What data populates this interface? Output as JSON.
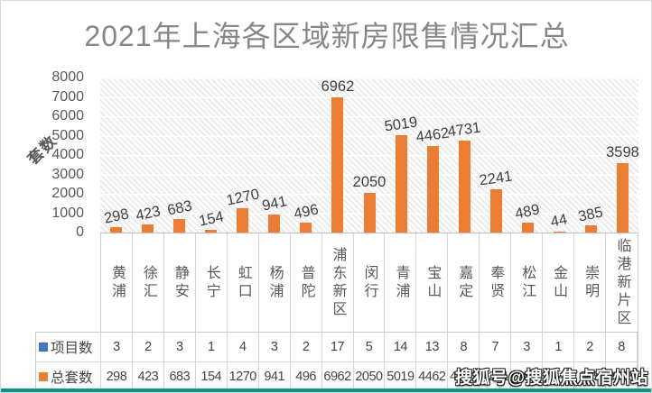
{
  "header": {
    "title": "2021年上海各区域新房限售情况汇总"
  },
  "chart_data": {
    "type": "bar",
    "title": "2021年上海各区域新房限售情况汇总",
    "xlabel": "",
    "ylabel": "套数",
    "ylim": [
      0,
      8000
    ],
    "ytick_step": 1000,
    "ytick_labels": [
      "8000",
      "7000",
      "6000",
      "5000",
      "4000",
      "3000",
      "2000",
      "1000",
      "0"
    ],
    "grid": true,
    "plot_background": "diagonal-hatch",
    "bar_color": "#ED7D31",
    "categories": [
      "黄浦",
      "徐汇",
      "静安",
      "长宁",
      "虹口",
      "杨浦",
      "普陀",
      "浦东新区",
      "闵行",
      "青浦",
      "宝山",
      "嘉定",
      "奉贤",
      "松江",
      "金山",
      "崇明",
      "临港新片区"
    ],
    "series": [
      {
        "name": "项目数",
        "swatch_color": "#4472C4",
        "shown_as_bars": false,
        "values": [
          3,
          2,
          3,
          1,
          4,
          3,
          2,
          17,
          5,
          14,
          13,
          8,
          7,
          3,
          1,
          2,
          8
        ]
      },
      {
        "name": "总套数",
        "swatch_color": "#ED7D31",
        "shown_as_bars": true,
        "values": [
          298,
          423,
          683,
          154,
          1270,
          941,
          496,
          6962,
          2050,
          5019,
          4462,
          4731,
          2241,
          489,
          44,
          385,
          3598
        ]
      }
    ],
    "legend_position": "table-rows-left"
  },
  "watermark": {
    "text": "搜狐号@搜狐焦点宿州站"
  },
  "colors": {
    "title_text": "#878787",
    "axis_text": "#595959",
    "data_label_text": "#404040",
    "bar_orange": "#ED7D31",
    "legend_blue": "#4472C4",
    "cell_border": "#D6D6D6",
    "bottom_accent": "#0E9384"
  }
}
